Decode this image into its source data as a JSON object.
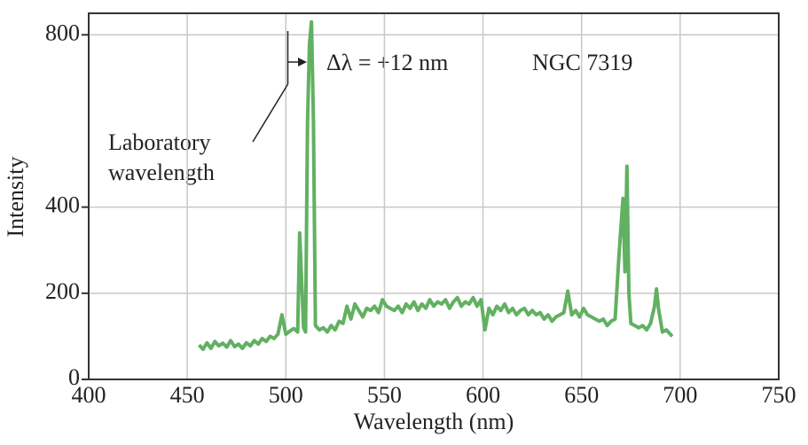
{
  "chart_data": {
    "type": "line",
    "x_label": "Wavelength (nm)",
    "y_label": "Intensity",
    "annotations": {
      "shift": "Δλ = +12 nm",
      "object": "NGC 7319",
      "lab_label": [
        "Laboratory",
        "wavelength"
      ]
    },
    "lab_wavelength": 501,
    "xlim": [
      400,
      750
    ],
    "xticks": [
      400,
      450,
      500,
      550,
      600,
      650,
      700,
      750
    ],
    "ylim": [
      0,
      850
    ],
    "yticks": [
      0,
      200,
      400,
      800
    ],
    "grid": true,
    "x": [
      456,
      458,
      460,
      462,
      464,
      466,
      468,
      470,
      472,
      474,
      476,
      478,
      480,
      482,
      484,
      486,
      488,
      490,
      492,
      494,
      496,
      498,
      500,
      502,
      504,
      506,
      507,
      509,
      510,
      511,
      512,
      513,
      514,
      515,
      517,
      519,
      521,
      523,
      525,
      527,
      529,
      531,
      533,
      535,
      537,
      539,
      541,
      543,
      545,
      547,
      549,
      551,
      553,
      555,
      557,
      559,
      561,
      563,
      565,
      567,
      569,
      571,
      573,
      575,
      577,
      579,
      581,
      583,
      585,
      587,
      589,
      591,
      593,
      595,
      597,
      599,
      601,
      603,
      605,
      607,
      609,
      611,
      613,
      615,
      617,
      619,
      621,
      623,
      625,
      627,
      629,
      631,
      633,
      635,
      637,
      639,
      641,
      643,
      645,
      647,
      649,
      651,
      653,
      655,
      657,
      659,
      661,
      663,
      665,
      667,
      669,
      671,
      672,
      673,
      674,
      675,
      677,
      679,
      681,
      683,
      685,
      687,
      688,
      689,
      691,
      693,
      695,
      696
    ],
    "series": [
      {
        "name": "NGC 7319",
        "color": "#62b062",
        "values": [
          80,
          70,
          85,
          72,
          88,
          78,
          84,
          75,
          90,
          76,
          82,
          72,
          85,
          78,
          90,
          82,
          95,
          88,
          100,
          95,
          105,
          150,
          105,
          112,
          118,
          110,
          340,
          120,
          110,
          600,
          780,
          830,
          600,
          125,
          115,
          120,
          110,
          125,
          115,
          135,
          130,
          170,
          140,
          175,
          160,
          145,
          165,
          160,
          170,
          155,
          185,
          170,
          165,
          160,
          170,
          155,
          175,
          165,
          180,
          160,
          175,
          165,
          185,
          170,
          180,
          175,
          185,
          165,
          180,
          190,
          170,
          180,
          175,
          190,
          170,
          185,
          115,
          165,
          150,
          170,
          160,
          175,
          155,
          165,
          150,
          160,
          165,
          150,
          160,
          150,
          155,
          140,
          150,
          135,
          145,
          150,
          155,
          205,
          150,
          160,
          145,
          165,
          150,
          145,
          140,
          135,
          140,
          125,
          135,
          140,
          290,
          420,
          250,
          495,
          200,
          130,
          125,
          120,
          125,
          115,
          130,
          170,
          210,
          165,
          110,
          115,
          105,
          100
        ]
      }
    ]
  }
}
